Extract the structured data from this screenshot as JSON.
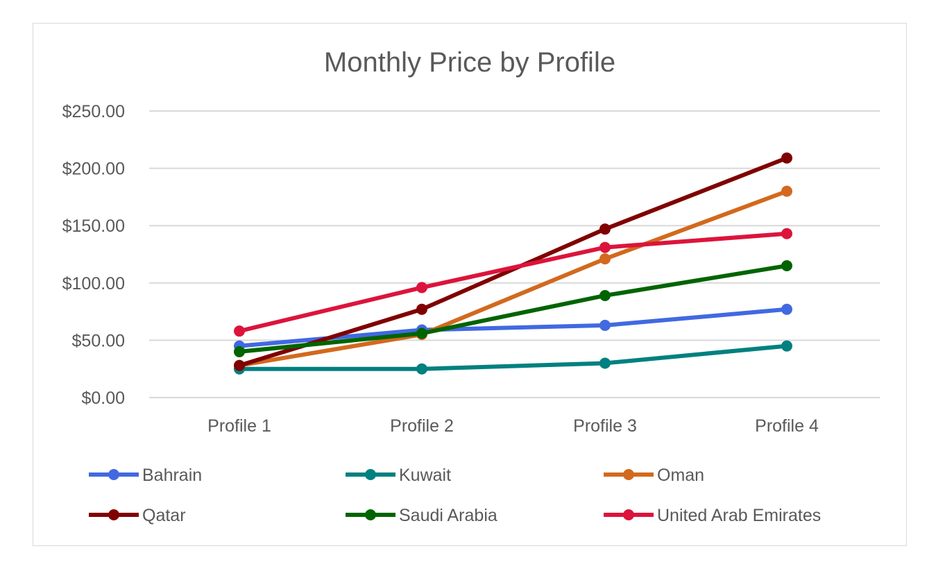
{
  "chart_data": {
    "type": "line",
    "title": "Monthly Price by Profile",
    "xlabel": "",
    "ylabel": "",
    "categories": [
      "Profile 1",
      "Profile 2",
      "Profile 3",
      "Profile 4"
    ],
    "ylim": [
      0,
      250
    ],
    "yticks": [
      0,
      50,
      100,
      150,
      200,
      250
    ],
    "ytick_labels": [
      "$0.00",
      "$50.00",
      "$100.00",
      "$150.00",
      "$200.00",
      "$250.00"
    ],
    "grid": true,
    "legend_position": "bottom",
    "series": [
      {
        "name": "Bahrain",
        "color": "#4169E1",
        "values": [
          45,
          59,
          63,
          77
        ]
      },
      {
        "name": "Kuwait",
        "color": "#008080",
        "values": [
          25,
          25,
          30,
          45
        ]
      },
      {
        "name": "Oman",
        "color": "#D2691E",
        "values": [
          28,
          55,
          121,
          180
        ]
      },
      {
        "name": "Qatar",
        "color": "#800000",
        "values": [
          28,
          77,
          147,
          209
        ]
      },
      {
        "name": "Saudi Arabia",
        "color": "#006400",
        "values": [
          40,
          56,
          89,
          115
        ]
      },
      {
        "name": "United Arab Emirates",
        "color": "#DC143C",
        "values": [
          58,
          96,
          131,
          143
        ]
      }
    ]
  }
}
